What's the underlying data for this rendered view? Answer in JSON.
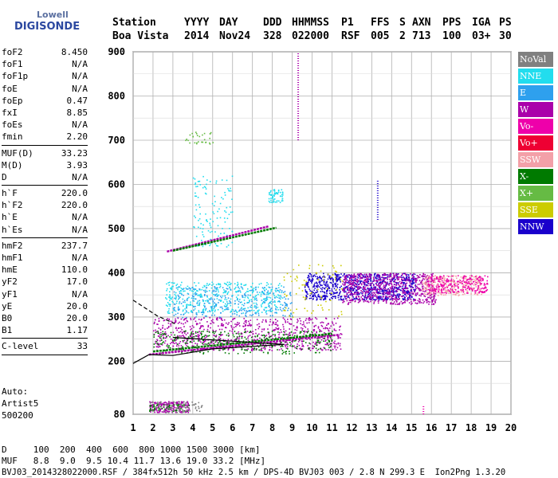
{
  "logo": {
    "line1": "Lowell",
    "line2": "DIGISONDE"
  },
  "header": {
    "labels": [
      "Station",
      "YYYY",
      "DAY",
      "DDD",
      "HHMMSS",
      "P1",
      "FFS",
      "S",
      "AXN",
      "PPS",
      "IGA",
      "PS"
    ],
    "values": [
      "Boa Vista",
      "2014",
      "Nov24",
      "328",
      "022000",
      "RSF",
      "005",
      "2",
      "713",
      "100",
      "03+",
      "30"
    ]
  },
  "params": [
    [
      {
        "k": "foF2",
        "v": "8.450"
      },
      {
        "k": "foF1",
        "v": "N/A"
      },
      {
        "k": "foF1p",
        "v": "N/A"
      },
      {
        "k": "foE",
        "v": "N/A"
      },
      {
        "k": "foEp",
        "v": "0.47"
      },
      {
        "k": "fxI",
        "v": "8.85"
      },
      {
        "k": "foEs",
        "v": "N/A"
      },
      {
        "k": "fmin",
        "v": "2.20"
      }
    ],
    [
      {
        "k": "MUF(D)",
        "v": "33.23"
      },
      {
        "k": "M(D)",
        "v": "3.93"
      },
      {
        "k": "D",
        "v": "N/A"
      }
    ],
    [
      {
        "k": "h`F",
        "v": "220.0"
      },
      {
        "k": "h`F2",
        "v": "220.0"
      },
      {
        "k": "h`E",
        "v": "N/A"
      },
      {
        "k": "h`Es",
        "v": "N/A"
      }
    ],
    [
      {
        "k": "hmF2",
        "v": "237.7"
      },
      {
        "k": "hmF1",
        "v": "N/A"
      },
      {
        "k": "hmE",
        "v": "110.0"
      },
      {
        "k": "yF2",
        "v": "17.0"
      },
      {
        "k": "yF1",
        "v": "N/A"
      },
      {
        "k": "yE",
        "v": "20.0"
      },
      {
        "k": "B0",
        "v": "20.0"
      },
      {
        "k": "B1",
        "v": "1.17"
      }
    ],
    [
      {
        "k": "C-level",
        "v": "33"
      }
    ]
  ],
  "auto": {
    "label": "Auto:",
    "name": "Artist5",
    "version": "500200"
  },
  "legend": [
    {
      "label": "NoVal",
      "color": "#808080"
    },
    {
      "label": "NNE",
      "color": "#22ddee"
    },
    {
      "label": "E",
      "color": "#2ea0ee"
    },
    {
      "label": "W",
      "color": "#aa00aa"
    },
    {
      "label": "Vo-",
      "color": "#ee00aa"
    },
    {
      "label": "Vo+",
      "color": "#ee0033"
    },
    {
      "label": "SSW",
      "color": "#f3a0a8"
    },
    {
      "label": "X-",
      "color": "#007a00"
    },
    {
      "label": "X+",
      "color": "#66bb44"
    },
    {
      "label": "SSE",
      "color": "#cccc00"
    },
    {
      "label": "NNW",
      "color": "#1a00cc"
    }
  ],
  "footer": {
    "d_line": "D     100  200  400  600  800 1000 1500 3000 [km]",
    "muf_line": "MUF   8.8  9.0  9.5 10.4 11.7 13.6 19.0 33.2 [MHz]",
    "file_line": "BVJ03_2014328022000.RSF / 384fx512h 50 kHz 2.5 km / DPS-4D BVJ03 003 / 2.8 N 299.3 E  Ion2Png 1.3.20"
  },
  "chart_data": {
    "type": "scatter",
    "xlim": [
      1,
      20
    ],
    "ylim": [
      80,
      900
    ],
    "x_ticks": [
      1,
      2,
      3,
      4,
      5,
      6,
      7,
      8,
      9,
      10,
      11,
      12,
      13,
      14,
      15,
      16,
      17,
      18,
      19,
      20
    ],
    "y_ticks": [
      80,
      200,
      300,
      400,
      500,
      600,
      700,
      800,
      900
    ],
    "grid": true,
    "clusters": [
      {
        "color": "#1a00cc",
        "x": [
          9.6,
          15.2
        ],
        "y": [
          340,
          400
        ],
        "n": 900
      },
      {
        "color": "#aa00aa",
        "x": [
          11.5,
          16.2
        ],
        "y": [
          330,
          400
        ],
        "n": 700
      },
      {
        "color": "#f3a0a8",
        "x": [
          15.5,
          18.5
        ],
        "y": [
          350,
          395
        ],
        "n": 300
      },
      {
        "color": "#ee00aa",
        "x": [
          15.8,
          18.8
        ],
        "y": [
          355,
          395
        ],
        "n": 250
      },
      {
        "color": "#22ddee",
        "x": [
          2.6,
          8.5
        ],
        "y": [
          310,
          380
        ],
        "n": 450
      },
      {
        "color": "#2ea0ee",
        "x": [
          3.0,
          9.0
        ],
        "y": [
          300,
          370
        ],
        "n": 300
      },
      {
        "color": "#aa00aa",
        "x": [
          2.0,
          11.5
        ],
        "y": [
          225,
          300
        ],
        "n": 800
      },
      {
        "color": "#007a00",
        "x": [
          2.0,
          11.0
        ],
        "y": [
          218,
          270
        ],
        "n": 350
      },
      {
        "color": "#cccc00",
        "x": [
          8.5,
          11.5
        ],
        "y": [
          300,
          420
        ],
        "n": 80
      },
      {
        "color": "#22ddee",
        "x": [
          4.0,
          6.0
        ],
        "y": [
          460,
          620
        ],
        "n": 120
      },
      {
        "color": "#22ddee",
        "x": [
          7.8,
          8.5
        ],
        "y": [
          560,
          590
        ],
        "n": 60
      },
      {
        "color": "#66bb44",
        "x": [
          3.5,
          5.0
        ],
        "y": [
          690,
          720
        ],
        "n": 30
      },
      {
        "color": "#aa00aa",
        "x": [
          1.8,
          3.8
        ],
        "y": [
          85,
          110
        ],
        "n": 200
      },
      {
        "color": "#007a00",
        "x": [
          1.8,
          3.8
        ],
        "y": [
          88,
          105
        ],
        "n": 60
      },
      {
        "color": "#808080",
        "x": [
          1.8,
          4.5
        ],
        "y": [
          85,
          110
        ],
        "n": 80
      }
    ],
    "traces": [
      {
        "color": "#aa00aa",
        "x": [
          2.7,
          7.8
        ],
        "y": [
          448,
          505
        ]
      },
      {
        "color": "#007a00",
        "x": [
          3.0,
          8.2
        ],
        "y": [
          450,
          502
        ]
      },
      {
        "color": "#aa00aa",
        "x": [
          1.8,
          11.4
        ],
        "y": [
          215,
          260
        ]
      },
      {
        "color": "#007a00",
        "x": [
          2.0,
          11.0
        ],
        "y": [
          222,
          262
        ]
      }
    ],
    "spikes": [
      {
        "color": "#1a00cc",
        "x": 13.3,
        "y": [
          520,
          610
        ]
      },
      {
        "color": "#aa00aa",
        "x": 9.3,
        "y": [
          700,
          900
        ]
      },
      {
        "color": "#ee00aa",
        "x": 15.6,
        "y": [
          80,
          98
        ]
      }
    ],
    "model_profile": {
      "color": "#000000",
      "upper": {
        "x": [
          1,
          2.2,
          3.1
        ],
        "y": [
          338,
          303,
          285
        ]
      },
      "lower": {
        "x": [
          1,
          1.8,
          3.0,
          5.0,
          8.6
        ],
        "y": [
          195,
          215,
          213,
          228,
          238
        ]
      },
      "right": {
        "x": [
          8.6,
          3.0
        ],
        "y": [
          238,
          254
        ]
      }
    }
  }
}
